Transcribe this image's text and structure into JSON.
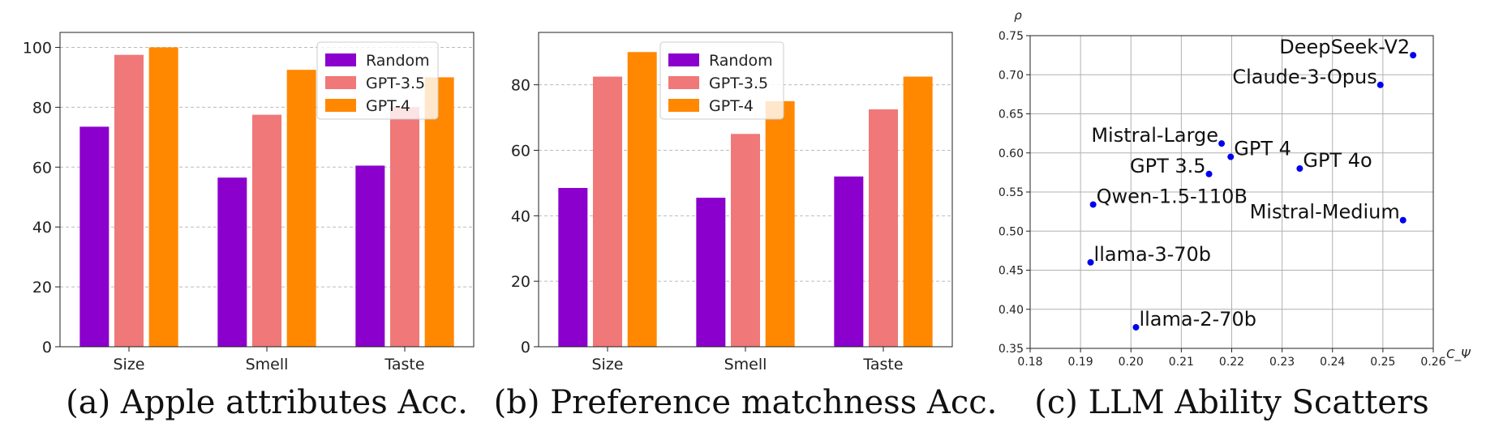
{
  "chart_data": [
    {
      "type": "bar",
      "categories": [
        "Size",
        "Smell",
        "Taste"
      ],
      "series": [
        {
          "name": "Random",
          "values": [
            73.5,
            56.5,
            60.5
          ],
          "color": "#8B00CC"
        },
        {
          "name": "GPT-3.5",
          "values": [
            97.5,
            77.5,
            80.0
          ],
          "color": "#F07878"
        },
        {
          "name": "GPT-4",
          "values": [
            100.0,
            92.5,
            90.0
          ],
          "color": "#FF8800"
        }
      ],
      "ylim": [
        0,
        105
      ],
      "yticks": [
        "0",
        "20",
        "40",
        "60",
        "80",
        "100"
      ],
      "grid": "horizontal dashed",
      "legend": "top-right",
      "caption": "(a) Apple attributes Acc."
    },
    {
      "type": "bar",
      "categories": [
        "Size",
        "Smell",
        "Taste"
      ],
      "series": [
        {
          "name": "Random",
          "values": [
            48.5,
            45.5,
            52.0
          ],
          "color": "#8B00CC"
        },
        {
          "name": "GPT-3.5",
          "values": [
            82.5,
            65.0,
            72.5
          ],
          "color": "#F07878"
        },
        {
          "name": "GPT-4",
          "values": [
            90.0,
            75.0,
            82.5
          ],
          "color": "#FF8800"
        }
      ],
      "ylim": [
        0,
        96
      ],
      "yticks": [
        "0",
        "20",
        "40",
        "60",
        "80"
      ],
      "grid": "horizontal dashed",
      "legend": "top-center",
      "caption": "(b) Preference matchness Acc."
    },
    {
      "type": "scatter",
      "xlabel": "C_Ψ",
      "ylabel": "ρ",
      "xlim": [
        0.18,
        0.26
      ],
      "ylim": [
        0.35,
        0.75
      ],
      "xticks": [
        "0.18",
        "0.19",
        "0.20",
        "0.21",
        "0.22",
        "0.23",
        "0.24",
        "0.25",
        "0.26"
      ],
      "yticks": [
        "0.35",
        "0.40",
        "0.45",
        "0.50",
        "0.55",
        "0.60",
        "0.65",
        "0.70",
        "0.75"
      ],
      "grid": "both",
      "point_color": "#0000EE",
      "points": [
        {
          "label": "DeepSeek-V2",
          "x": 0.256,
          "y": 0.725,
          "label_side": "left"
        },
        {
          "label": "Claude-3-Opus",
          "x": 0.2495,
          "y": 0.687,
          "label_side": "left"
        },
        {
          "label": "Mistral-Large",
          "x": 0.218,
          "y": 0.612,
          "label_side": "left"
        },
        {
          "label": "GPT 4",
          "x": 0.2198,
          "y": 0.595,
          "label_side": "right"
        },
        {
          "label": "GPT 3.5",
          "x": 0.2155,
          "y": 0.573,
          "label_side": "left"
        },
        {
          "label": "GPT 4o",
          "x": 0.2335,
          "y": 0.58,
          "label_side": "right"
        },
        {
          "label": "Qwen-1.5-110B",
          "x": 0.1925,
          "y": 0.534,
          "label_side": "right"
        },
        {
          "label": "Mistral-Medium",
          "x": 0.254,
          "y": 0.514,
          "label_side": "left"
        },
        {
          "label": "llama-3-70b",
          "x": 0.192,
          "y": 0.46,
          "label_side": "right"
        },
        {
          "label": "llama-2-70b",
          "x": 0.201,
          "y": 0.377,
          "label_side": "right"
        }
      ],
      "caption": "(c) LLM Ability Scatters"
    }
  ]
}
